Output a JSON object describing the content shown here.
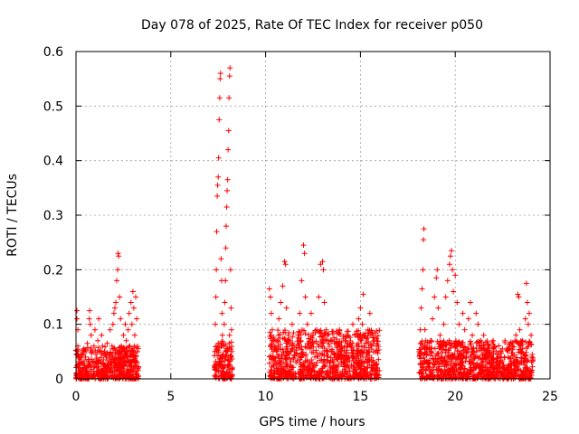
{
  "chart_data": {
    "type": "scatter",
    "title": "Day 078 of 2025, Rate Of TEC Index for receiver p050",
    "xlabel": "GPS time / hours",
    "ylabel": "ROTI / TECUs",
    "xlim": [
      0,
      25
    ],
    "ylim": [
      0,
      0.6
    ],
    "x_ticks": [
      0,
      5,
      10,
      15,
      20,
      25
    ],
    "y_ticks": [
      0,
      0.1,
      0.2,
      0.3,
      0.4,
      0.5,
      0.6
    ],
    "x_tick_labels": [
      "0",
      "5",
      "10",
      "15",
      "20",
      "25"
    ],
    "y_tick_labels": [
      "0",
      "0.1",
      "0.2",
      "0.3",
      "0.4",
      "0.5",
      "0.6"
    ],
    "grid": true,
    "marker": "+",
    "color": "#ff0000",
    "series": [
      {
        "name": "ROTI",
        "points": [
          [
            0.05,
            0.125
          ],
          [
            0.05,
            0.11
          ],
          [
            0.1,
            0.09
          ],
          [
            0.1,
            0.06
          ],
          [
            0.15,
            0.04
          ],
          [
            0.2,
            0.02
          ],
          [
            0.25,
            0.045
          ],
          [
            0.3,
            0.03
          ],
          [
            0.35,
            0.015
          ],
          [
            0.4,
            0.05
          ],
          [
            0.45,
            0.025
          ],
          [
            0.5,
            0.04
          ],
          [
            0.55,
            0.02
          ],
          [
            0.6,
            0.065
          ],
          [
            0.65,
            0.035
          ],
          [
            0.7,
            0.11
          ],
          [
            0.72,
            0.125
          ],
          [
            0.75,
            0.1
          ],
          [
            0.8,
            0.08
          ],
          [
            0.85,
            0.05
          ],
          [
            0.9,
            0.03
          ],
          [
            0.95,
            0.06
          ],
          [
            1.0,
            0.09
          ],
          [
            1.05,
            0.045
          ],
          [
            1.1,
            0.02
          ],
          [
            1.15,
            0.07
          ],
          [
            1.2,
            0.11
          ],
          [
            1.25,
            0.05
          ],
          [
            1.3,
            0.03
          ],
          [
            1.35,
            0.08
          ],
          [
            1.4,
            0.06
          ],
          [
            1.45,
            0.035
          ],
          [
            1.5,
            0.05
          ],
          [
            1.55,
            0.02
          ],
          [
            1.6,
            0.04
          ],
          [
            1.65,
            0.065
          ],
          [
            1.7,
            0.025
          ],
          [
            1.75,
            0.045
          ],
          [
            1.8,
            0.09
          ],
          [
            1.85,
            0.03
          ],
          [
            1.9,
            0.06
          ],
          [
            1.95,
            0.1
          ],
          [
            2.0,
            0.12
          ],
          [
            2.05,
            0.13
          ],
          [
            2.1,
            0.14
          ],
          [
            2.15,
            0.18
          ],
          [
            2.2,
            0.2
          ],
          [
            2.22,
            0.23
          ],
          [
            2.25,
            0.225
          ],
          [
            2.3,
            0.15
          ],
          [
            2.35,
            0.11
          ],
          [
            2.4,
            0.06
          ],
          [
            2.45,
            0.03
          ],
          [
            2.5,
            0.08
          ],
          [
            2.55,
            0.05
          ],
          [
            2.6,
            0.1
          ],
          [
            2.65,
            0.07
          ],
          [
            2.7,
            0.04
          ],
          [
            2.75,
            0.09
          ],
          [
            2.8,
            0.12
          ],
          [
            2.85,
            0.06
          ],
          [
            2.9,
            0.14
          ],
          [
            2.95,
            0.1
          ],
          [
            3.0,
            0.16
          ],
          [
            3.05,
            0.13
          ],
          [
            3.1,
            0.08
          ],
          [
            3.15,
            0.15
          ],
          [
            3.2,
            0.11
          ],
          [
            3.25,
            0.05
          ],
          [
            3.3,
            0.02
          ],
          [
            0.1,
            0.01
          ],
          [
            0.3,
            0.008
          ],
          [
            0.6,
            0.012
          ],
          [
            0.9,
            0.006
          ],
          [
            1.2,
            0.01
          ],
          [
            1.5,
            0.009
          ],
          [
            1.8,
            0.011
          ],
          [
            2.1,
            0.007
          ],
          [
            2.4,
            0.01
          ],
          [
            2.7,
            0.012
          ],
          [
            3.0,
            0.008
          ],
          [
            3.3,
            0.005
          ],
          [
            7.3,
            0.02
          ],
          [
            7.32,
            0.05
          ],
          [
            7.35,
            0.1
          ],
          [
            7.38,
            0.15
          ],
          [
            7.4,
            0.2
          ],
          [
            7.42,
            0.27
          ],
          [
            7.45,
            0.335
          ],
          [
            7.47,
            0.355
          ],
          [
            7.5,
            0.37
          ],
          [
            7.52,
            0.405
          ],
          [
            7.55,
            0.475
          ],
          [
            7.58,
            0.515
          ],
          [
            7.6,
            0.55
          ],
          [
            7.62,
            0.56
          ],
          [
            7.65,
            0.22
          ],
          [
            7.68,
            0.18
          ],
          [
            7.7,
            0.12
          ],
          [
            7.72,
            0.08
          ],
          [
            7.75,
            0.04
          ],
          [
            7.78,
            0.02
          ],
          [
            7.8,
            0.06
          ],
          [
            7.82,
            0.1
          ],
          [
            7.85,
            0.14
          ],
          [
            7.88,
            0.18
          ],
          [
            7.9,
            0.24
          ],
          [
            7.92,
            0.28
          ],
          [
            7.95,
            0.315
          ],
          [
            7.97,
            0.345
          ],
          [
            8.0,
            0.365
          ],
          [
            8.02,
            0.42
          ],
          [
            8.05,
            0.455
          ],
          [
            8.07,
            0.515
          ],
          [
            8.1,
            0.555
          ],
          [
            8.12,
            0.57
          ],
          [
            8.15,
            0.2
          ],
          [
            8.18,
            0.13
          ],
          [
            8.2,
            0.09
          ],
          [
            8.22,
            0.05
          ],
          [
            8.25,
            0.02
          ],
          [
            7.6,
            0.03
          ],
          [
            7.9,
            0.05
          ],
          [
            8.1,
            0.08
          ],
          [
            10.2,
            0.165
          ],
          [
            10.25,
            0.15
          ],
          [
            10.3,
            0.12
          ],
          [
            10.35,
            0.09
          ],
          [
            10.4,
            0.05
          ],
          [
            10.5,
            0.03
          ],
          [
            10.6,
            0.07
          ],
          [
            10.7,
            0.11
          ],
          [
            10.8,
            0.14
          ],
          [
            10.9,
            0.17
          ],
          [
            11.0,
            0.215
          ],
          [
            11.05,
            0.21
          ],
          [
            11.1,
            0.13
          ],
          [
            11.2,
            0.08
          ],
          [
            11.3,
            0.05
          ],
          [
            11.4,
            0.1
          ],
          [
            11.5,
            0.06
          ],
          [
            11.6,
            0.03
          ],
          [
            11.7,
            0.08
          ],
          [
            11.8,
            0.12
          ],
          [
            11.9,
            0.18
          ],
          [
            12.0,
            0.245
          ],
          [
            12.05,
            0.23
          ],
          [
            12.1,
            0.15
          ],
          [
            12.2,
            0.1
          ],
          [
            12.3,
            0.06
          ],
          [
            12.4,
            0.12
          ],
          [
            12.5,
            0.08
          ],
          [
            12.6,
            0.04
          ],
          [
            12.7,
            0.09
          ],
          [
            12.8,
            0.15
          ],
          [
            12.9,
            0.21
          ],
          [
            13.0,
            0.215
          ],
          [
            13.05,
            0.2
          ],
          [
            13.1,
            0.14
          ],
          [
            13.2,
            0.09
          ],
          [
            13.3,
            0.05
          ],
          [
            13.4,
            0.03
          ],
          [
            13.5,
            0.07
          ],
          [
            13.6,
            0.045
          ],
          [
            13.7,
            0.02
          ],
          [
            13.8,
            0.06
          ],
          [
            13.9,
            0.09
          ],
          [
            14.0,
            0.05
          ],
          [
            14.1,
            0.03
          ],
          [
            14.2,
            0.07
          ],
          [
            14.3,
            0.04
          ],
          [
            14.4,
            0.02
          ],
          [
            14.5,
            0.06
          ],
          [
            14.6,
            0.1
          ],
          [
            14.7,
            0.08
          ],
          [
            14.8,
            0.04
          ],
          [
            14.9,
            0.11
          ],
          [
            15.0,
            0.13
          ],
          [
            15.05,
            0.07
          ],
          [
            15.1,
            0.1
          ],
          [
            15.15,
            0.155
          ],
          [
            15.2,
            0.06
          ],
          [
            15.3,
            0.04
          ],
          [
            15.4,
            0.09
          ],
          [
            15.5,
            0.12
          ],
          [
            15.6,
            0.06
          ],
          [
            15.7,
            0.03
          ],
          [
            15.8,
            0.05
          ],
          [
            15.9,
            0.02
          ],
          [
            10.3,
            0.01
          ],
          [
            10.8,
            0.012
          ],
          [
            11.3,
            0.008
          ],
          [
            11.8,
            0.011
          ],
          [
            12.3,
            0.009
          ],
          [
            12.8,
            0.01
          ],
          [
            13.3,
            0.007
          ],
          [
            13.8,
            0.012
          ],
          [
            14.3,
            0.008
          ],
          [
            14.8,
            0.01
          ],
          [
            15.3,
            0.006
          ],
          [
            15.8,
            0.009
          ],
          [
            18.1,
            0.05
          ],
          [
            18.15,
            0.09
          ],
          [
            18.2,
            0.13
          ],
          [
            18.25,
            0.165
          ],
          [
            18.3,
            0.2
          ],
          [
            18.32,
            0.255
          ],
          [
            18.35,
            0.275
          ],
          [
            18.4,
            0.09
          ],
          [
            18.5,
            0.05
          ],
          [
            18.6,
            0.03
          ],
          [
            18.7,
            0.07
          ],
          [
            18.8,
            0.11
          ],
          [
            18.9,
            0.15
          ],
          [
            19.0,
            0.185
          ],
          [
            19.05,
            0.2
          ],
          [
            19.1,
            0.13
          ],
          [
            19.2,
            0.08
          ],
          [
            19.3,
            0.04
          ],
          [
            19.4,
            0.1
          ],
          [
            19.5,
            0.15
          ],
          [
            19.6,
            0.18
          ],
          [
            19.7,
            0.21
          ],
          [
            19.75,
            0.225
          ],
          [
            19.8,
            0.235
          ],
          [
            19.85,
            0.2
          ],
          [
            19.9,
            0.16
          ],
          [
            20.0,
            0.19
          ],
          [
            20.1,
            0.14
          ],
          [
            20.2,
            0.1
          ],
          [
            20.3,
            0.06
          ],
          [
            20.4,
            0.12
          ],
          [
            20.5,
            0.09
          ],
          [
            20.6,
            0.05
          ],
          [
            20.7,
            0.11
          ],
          [
            20.8,
            0.14
          ],
          [
            20.9,
            0.08
          ],
          [
            21.0,
            0.05
          ],
          [
            21.1,
            0.12
          ],
          [
            21.2,
            0.1
          ],
          [
            21.3,
            0.06
          ],
          [
            21.4,
            0.03
          ],
          [
            21.5,
            0.08
          ],
          [
            21.6,
            0.05
          ],
          [
            21.7,
            0.02
          ],
          [
            21.8,
            0.06
          ],
          [
            21.9,
            0.04
          ],
          [
            22.0,
            0.07
          ],
          [
            22.2,
            0.03
          ],
          [
            22.4,
            0.05
          ],
          [
            22.6,
            0.02
          ],
          [
            22.8,
            0.04
          ],
          [
            23.0,
            0.06
          ],
          [
            23.2,
            0.08
          ],
          [
            23.3,
            0.155
          ],
          [
            23.35,
            0.15
          ],
          [
            23.4,
            0.09
          ],
          [
            23.5,
            0.05
          ],
          [
            23.6,
            0.03
          ],
          [
            23.7,
            0.11
          ],
          [
            23.75,
            0.175
          ],
          [
            23.8,
            0.14
          ],
          [
            23.85,
            0.1
          ],
          [
            23.9,
            0.12
          ],
          [
            24.0,
            0.08
          ],
          [
            24.05,
            0.04
          ],
          [
            18.2,
            0.01
          ],
          [
            18.7,
            0.012
          ],
          [
            19.2,
            0.008
          ],
          [
            19.7,
            0.011
          ],
          [
            20.2,
            0.009
          ],
          [
            20.7,
            0.01
          ],
          [
            21.2,
            0.007
          ],
          [
            21.7,
            0.012
          ],
          [
            22.2,
            0.008
          ],
          [
            22.7,
            0.01
          ],
          [
            23.2,
            0.006
          ],
          [
            23.7,
            0.009
          ],
          [
            24.0,
            0.011
          ]
        ],
        "bands": [
          {
            "x_range": [
              0.0,
              3.3
            ],
            "y_range": [
              0.0,
              0.06
            ]
          },
          {
            "x_range": [
              7.3,
              8.25
            ],
            "y_range": [
              0.0,
              0.07
            ]
          },
          {
            "x_range": [
              10.2,
              16.0
            ],
            "y_range": [
              0.0,
              0.09
            ]
          },
          {
            "x_range": [
              18.1,
              24.1
            ],
            "y_range": [
              0.0,
              0.07
            ]
          }
        ]
      }
    ]
  }
}
